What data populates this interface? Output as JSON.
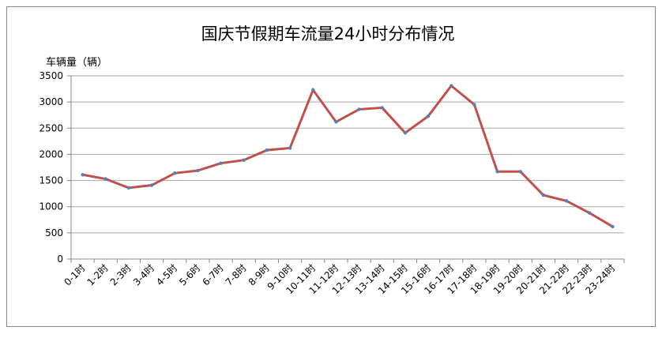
{
  "chart_data": {
    "type": "line",
    "title": "国庆节假期车流量24小时分布情况",
    "y_label": "车辆量（辆）",
    "categories": [
      "0-1时",
      "1-2时",
      "2-3时",
      "3-4时",
      "4-5时",
      "5-6时",
      "6-7时",
      "7-8时",
      "8-9时",
      "9-10时",
      "10-11时",
      "11-12时",
      "12-13时",
      "13-14时",
      "14-15时",
      "15-16时",
      "16-17时",
      "17-18时",
      "18-19时",
      "19-20时",
      "20-21时",
      "21-22时",
      "22-23时",
      "23-24时"
    ],
    "series": [
      {
        "name": "车辆量",
        "color": "#c0504d",
        "marker_color": "#4f81bd",
        "values": [
          1610,
          1530,
          1360,
          1410,
          1640,
          1690,
          1830,
          1890,
          2080,
          2120,
          3230,
          2620,
          2860,
          2890,
          2410,
          2730,
          3310,
          2950,
          1670,
          1670,
          1220,
          1110,
          880,
          620
        ]
      }
    ],
    "ylim": [
      0,
      3500
    ],
    "yticks": [
      0,
      500,
      1000,
      1500,
      2000,
      2500,
      3000,
      3500
    ],
    "grid": true
  }
}
